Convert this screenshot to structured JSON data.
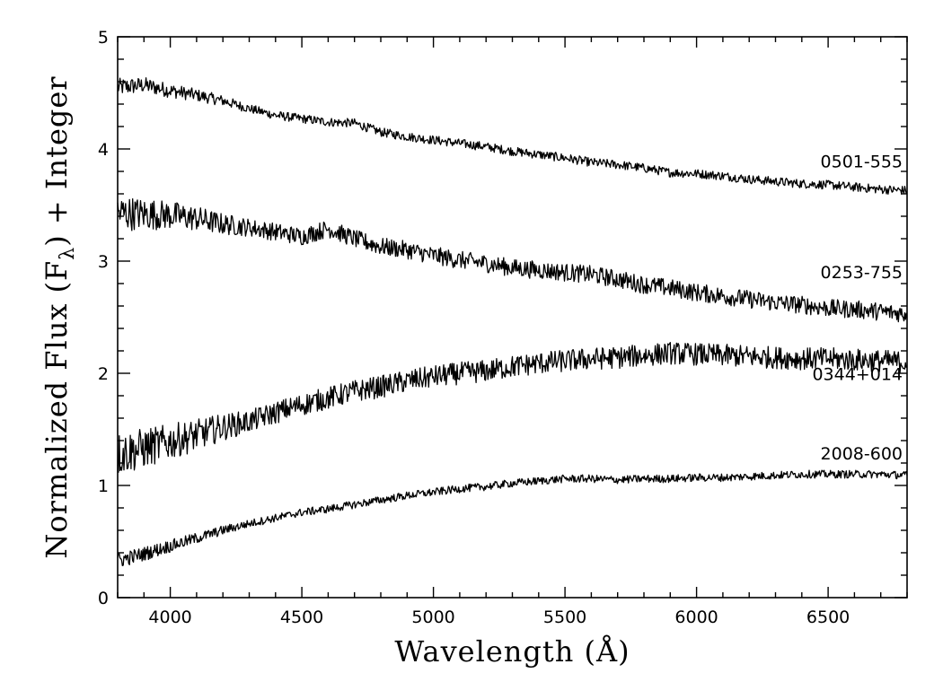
{
  "chart_data": {
    "type": "line",
    "xlabel": "Wavelength (Å)",
    "ylabel_parts": [
      "Normalized Flux (F",
      "λ",
      ") + Integer"
    ],
    "xlim": [
      3800,
      6800
    ],
    "ylim": [
      0,
      5
    ],
    "xticks": [
      4000,
      4500,
      5000,
      5500,
      6000,
      6500
    ],
    "xtick_labels": [
      "4000",
      "4500",
      "5000",
      "5500",
      "6000",
      "6500"
    ],
    "yticks": [
      0,
      1,
      2,
      3,
      4,
      5
    ],
    "ytick_labels": [
      "0",
      "1",
      "2",
      "3",
      "4",
      "5"
    ],
    "grid": false,
    "series": [
      {
        "name": "0501-555",
        "x": [
          3800,
          3900,
          4000,
          4100,
          4200,
          4300,
          4400,
          4500,
          4600,
          4700,
          4800,
          4900,
          5000,
          5100,
          5200,
          5300,
          5400,
          5500,
          5600,
          5700,
          5800,
          5900,
          6000,
          6100,
          6200,
          6300,
          6400,
          6500,
          6600,
          6700,
          6800
        ],
        "y": [
          4.55,
          4.57,
          4.52,
          4.48,
          4.43,
          4.36,
          4.3,
          4.27,
          4.24,
          4.23,
          4.15,
          4.11,
          4.08,
          4.05,
          4.02,
          3.98,
          3.95,
          3.92,
          3.88,
          3.86,
          3.83,
          3.79,
          3.78,
          3.76,
          3.73,
          3.71,
          3.69,
          3.68,
          3.66,
          3.64,
          3.63
        ],
        "noise": 0.04
      },
      {
        "name": "0253-755",
        "x": [
          3800,
          3900,
          4000,
          4100,
          4200,
          4300,
          4400,
          4500,
          4600,
          4700,
          4800,
          4900,
          5000,
          5100,
          5200,
          5300,
          5400,
          5500,
          5600,
          5700,
          5800,
          5900,
          6000,
          6100,
          6200,
          6300,
          6400,
          6500,
          6600,
          6700,
          6800
        ],
        "y": [
          3.43,
          3.42,
          3.41,
          3.38,
          3.33,
          3.3,
          3.26,
          3.22,
          3.29,
          3.2,
          3.13,
          3.1,
          3.05,
          3.01,
          2.98,
          2.94,
          2.92,
          2.9,
          2.88,
          2.84,
          2.79,
          2.76,
          2.72,
          2.69,
          2.66,
          2.63,
          2.61,
          2.58,
          2.57,
          2.55,
          2.53
        ],
        "noise": 0.08
      },
      {
        "name": "0344+014",
        "x": [
          3800,
          3900,
          4000,
          4100,
          4200,
          4300,
          4400,
          4500,
          4600,
          4700,
          4800,
          4900,
          5000,
          5100,
          5200,
          5300,
          5400,
          5500,
          5600,
          5700,
          5800,
          5900,
          6000,
          6100,
          6200,
          6300,
          6400,
          6500,
          6600,
          6700,
          6800
        ],
        "y": [
          1.28,
          1.33,
          1.39,
          1.45,
          1.52,
          1.57,
          1.65,
          1.72,
          1.78,
          1.84,
          1.88,
          1.93,
          1.97,
          2.0,
          2.02,
          2.06,
          2.09,
          2.11,
          2.13,
          2.14,
          2.16,
          2.18,
          2.17,
          2.16,
          2.15,
          2.14,
          2.13,
          2.13,
          2.12,
          2.11,
          2.1
        ],
        "noise": 0.1
      },
      {
        "name": "2008-600",
        "x": [
          3800,
          3900,
          4000,
          4100,
          4200,
          4300,
          4400,
          4500,
          4600,
          4700,
          4800,
          4900,
          5000,
          5100,
          5200,
          5300,
          5400,
          5500,
          5600,
          5700,
          5800,
          5900,
          6000,
          6100,
          6200,
          6300,
          6400,
          6500,
          6600,
          6700,
          6800
        ],
        "y": [
          0.33,
          0.39,
          0.46,
          0.53,
          0.6,
          0.66,
          0.71,
          0.76,
          0.79,
          0.83,
          0.87,
          0.91,
          0.94,
          0.97,
          0.99,
          1.02,
          1.04,
          1.06,
          1.06,
          1.05,
          1.06,
          1.06,
          1.07,
          1.07,
          1.08,
          1.09,
          1.1,
          1.1,
          1.1,
          1.1,
          1.09
        ],
        "noise": 0.035
      }
    ]
  }
}
